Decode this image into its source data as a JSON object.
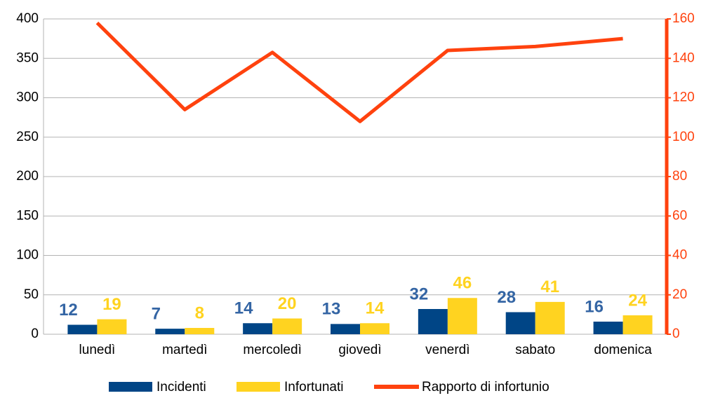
{
  "chart_data": {
    "type": "bar_line",
    "categories": [
      "lunedì",
      "martedì",
      "mercoledì",
      "giovedì",
      "venerdì",
      "sabato",
      "domenica"
    ],
    "series": [
      {
        "name": "Incidenti",
        "type": "bar",
        "color": "#004586",
        "values": [
          12,
          7,
          14,
          13,
          32,
          28,
          16
        ]
      },
      {
        "name": "Infortunati",
        "type": "bar",
        "color": "#ffd320",
        "values": [
          19,
          8,
          20,
          14,
          46,
          41,
          24
        ]
      },
      {
        "name": "Rapporto di infortunio",
        "type": "line",
        "axis": "y2",
        "color": "#ff420e",
        "values": [
          158,
          114,
          143,
          108,
          144,
          146,
          150
        ]
      }
    ],
    "ylim": [
      0,
      400
    ],
    "yticks": [
      0,
      50,
      100,
      150,
      200,
      250,
      300,
      350,
      400
    ],
    "y2lim": [
      0,
      160
    ],
    "y2ticks": [
      0,
      20,
      40,
      60,
      80,
      100,
      120,
      140,
      160
    ],
    "grid": true,
    "legend": "bottom"
  }
}
